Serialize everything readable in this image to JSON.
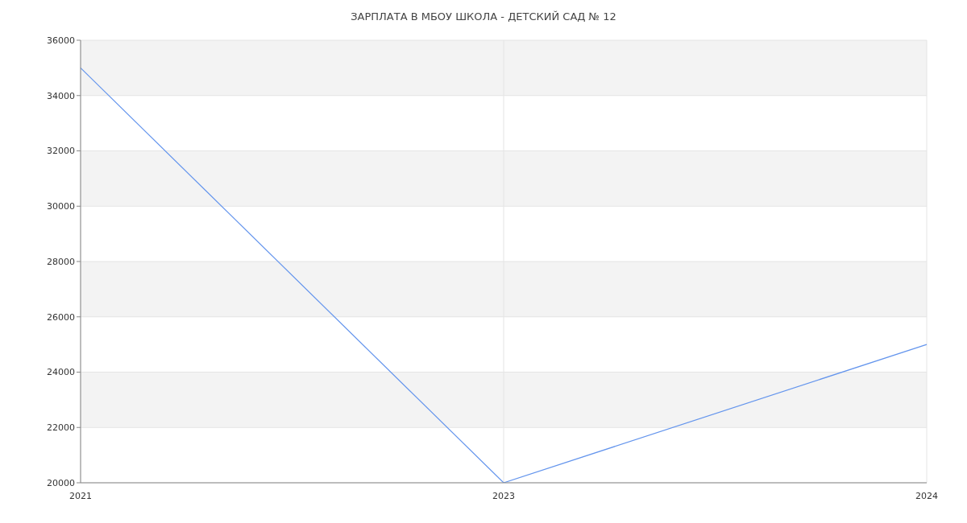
{
  "chart_data": {
    "type": "line",
    "title": "ЗАРПЛАТА В МБОУ ШКОЛА - ДЕТСКИЙ САД № 12",
    "categories": [
      "2021",
      "2023",
      "2024"
    ],
    "series": [
      {
        "color": "#6495ed",
        "values": [
          35000,
          20000,
          25000
        ]
      }
    ],
    "ylim": [
      20000,
      36000
    ],
    "yticks": [
      20000,
      22000,
      24000,
      26000,
      28000,
      30000,
      32000,
      34000,
      36000
    ],
    "grid": true,
    "marker": "none"
  }
}
